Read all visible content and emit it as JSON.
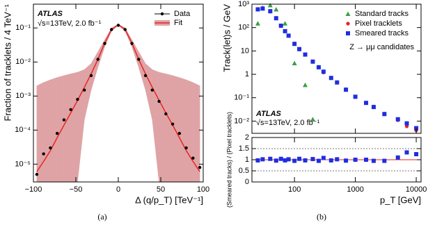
{
  "chart_data": [
    {
      "type": "line",
      "label": "(a)",
      "xlabel": "Δ (q/p_T) [TeV⁻¹]",
      "ylabel": "Fraction of tracklets / 4 TeV⁻¹",
      "annotations": [
        "ATLAS",
        "√s=13TeV, 2.0 fb⁻¹"
      ],
      "legend": "upper right",
      "xlim": [
        -100,
        100
      ],
      "xticks": [
        {
          "value": -100,
          "label": "−100"
        },
        {
          "value": -50,
          "label": "−50"
        },
        0,
        50,
        100
      ],
      "ylog": true,
      "ylim": [
        3e-06,
        0.5
      ],
      "yticks": [
        {
          "value": 1e-05,
          "label": "10⁻⁵"
        },
        {
          "value": 0.0001,
          "label": "10⁻⁴"
        },
        {
          "value": 0.001,
          "label": "10⁻³"
        },
        {
          "value": 0.01,
          "label": "10⁻²"
        },
        {
          "value": 0.1,
          "label": "10⁻¹"
        }
      ],
      "x": [
        -96,
        -88,
        -80,
        -72,
        -64,
        -56,
        -48,
        -40,
        -32,
        -24,
        -16,
        -8,
        0,
        8,
        16,
        24,
        32,
        40,
        48,
        56,
        64,
        72,
        80,
        88,
        96
      ],
      "series": [
        {
          "name": "Data",
          "color": "#000000",
          "values": [
            5e-06,
            2e-05,
            3e-05,
            8e-05,
            0.0002,
            0.0004,
            0.0008,
            0.0015,
            0.004,
            0.012,
            0.035,
            0.09,
            0.12,
            0.09,
            0.035,
            0.012,
            0.004,
            0.0015,
            0.0007,
            0.0003,
            0.00015,
            8e-05,
            3e-05,
            1.5e-05,
            8e-06
          ]
        },
        {
          "name": "Fit",
          "color": "#e8231f",
          "band_color": "#dfa3a6",
          "values": [
            6e-06,
            1.2e-05,
            2.5e-05,
            6e-05,
            0.00014,
            0.00032,
            0.00075,
            0.0018,
            0.0045,
            0.012,
            0.036,
            0.09,
            0.125,
            0.09,
            0.036,
            0.012,
            0.0045,
            0.0018,
            0.00075,
            0.00032,
            0.00014,
            6e-05,
            2.5e-05,
            1.2e-05,
            6e-06
          ],
          "band_high": [
            0.002,
            0.0025,
            0.003,
            0.0035,
            0.004,
            0.0045,
            0.005,
            0.006,
            0.009,
            0.02,
            0.045,
            0.1,
            0.13,
            0.1,
            0.045,
            0.02,
            0.009,
            0.006,
            0.005,
            0.0045,
            0.004,
            0.0035,
            0.003,
            0.0025,
            0.002
          ],
          "band_low": [
            3e-06,
            3e-06,
            3e-06,
            3e-06,
            3e-06,
            3e-06,
            3e-06,
            0.0002,
            0.0015,
            0.007,
            0.028,
            0.08,
            0.12,
            0.08,
            0.028,
            0.007,
            0.0015,
            0.0002,
            3e-06,
            3e-06,
            3e-06,
            3e-06,
            3e-06,
            3e-06,
            3e-06
          ]
        }
      ]
    },
    {
      "type": "scatter",
      "label": "(b)",
      "xlabel": "p_T [GeV]",
      "ylabel": "Track(let)s / GeV",
      "annotations": [
        "ATLAS",
        "√s=13TeV, 2.0 fb⁻¹"
      ],
      "note": "Z → μμ candidates",
      "legend": "upper right",
      "xlog": true,
      "xlim": [
        20,
        12000
      ],
      "xticks": [
        100,
        1000,
        10000
      ],
      "ylog": true,
      "ylim": [
        0.003,
        1000
      ],
      "yticks": [
        {
          "value": 0.01,
          "label": "10⁻²"
        },
        {
          "value": 0.1,
          "label": "10⁻¹"
        },
        1,
        10,
        {
          "value": 100,
          "label": "10²"
        },
        {
          "value": 1000,
          "label": "10³"
        }
      ],
      "x": [
        25,
        30,
        40,
        50,
        60,
        70,
        80,
        100,
        120,
        150,
        200,
        250,
        300,
        400,
        500,
        700,
        1000,
        1500,
        2000,
        3000,
        5000,
        7000,
        10000
      ],
      "series": [
        {
          "name": "Standard tracks",
          "color": "#3aa043",
          "marker": "triangle",
          "values": [
            150,
            700,
            900,
            600,
            null,
            150,
            null,
            3,
            null,
            0.35,
            0.012,
            null,
            null,
            null,
            null,
            null,
            null,
            null,
            null,
            null,
            null,
            null,
            null
          ]
        },
        {
          "name": "Pixel tracklets",
          "color": "#e8231f",
          "marker": "circle",
          "values": [
            620,
            640,
            480,
            260,
            115,
            72,
            44,
            21,
            11.5,
            7.2,
            3.4,
            2.1,
            1.2,
            0.72,
            0.44,
            0.23,
            0.11,
            0.06,
            0.042,
            0.021,
            0.011,
            0.006,
            0.004
          ]
        },
        {
          "name": "Smeared tracks",
          "color": "#1f2ee0",
          "marker": "square",
          "values": [
            600,
            650,
            500,
            250,
            120,
            70,
            45,
            20,
            12,
            7,
            3.5,
            2,
            1.3,
            0.7,
            0.45,
            0.22,
            0.11,
            0.06,
            0.04,
            0.02,
            0.012,
            0.008,
            0.005
          ]
        }
      ],
      "ratio": {
        "ylabel": "(Smeared tracks) / (Pixel tracklets)",
        "ylim": [
          0,
          2
        ],
        "yticks": [
          0,
          0.5,
          1,
          1.5,
          2
        ],
        "reference": 1,
        "color": "#1f2ee0",
        "values": [
          0.97,
          1.02,
          1.04,
          0.96,
          1.04,
          0.97,
          1.02,
          0.95,
          1.04,
          0.97,
          1.03,
          0.95,
          1.08,
          0.97,
          1.02,
          0.96,
          1.0,
          1.0,
          0.95,
          0.95,
          1.1,
          1.33,
          1.25
        ]
      }
    }
  ]
}
